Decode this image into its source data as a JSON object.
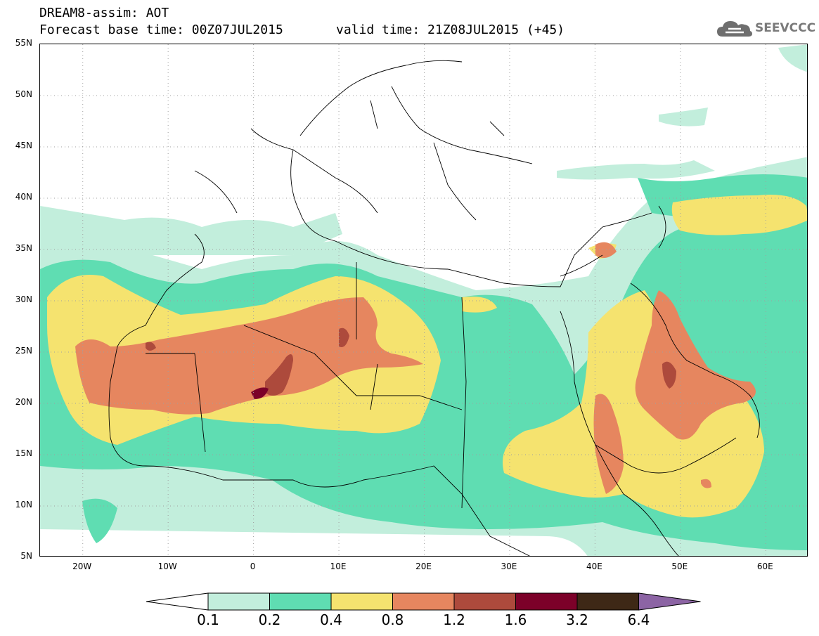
{
  "header": {
    "title": "DREAM8-assim: AOT",
    "base_time": "Forecast base time: 00Z07JUL2015",
    "valid_time": "valid time: 21Z08JUL2015 (+45)"
  },
  "logo": {
    "text": "SEEVCCC",
    "icon": "cloud-icon"
  },
  "map": {
    "lat_labels": [
      "55N",
      "50N",
      "45N",
      "40N",
      "35N",
      "30N",
      "25N",
      "20N",
      "15N",
      "10N",
      "5N"
    ],
    "lon_labels": [
      "20W",
      "10W",
      "0",
      "10E",
      "20E",
      "30E",
      "40E",
      "50E",
      "60E"
    ],
    "lon_range": [
      -25,
      65
    ],
    "lat_range": [
      5,
      55
    ]
  },
  "colorbar": {
    "labels": [
      "0.1",
      "0.2",
      "0.4",
      "0.8",
      "1.2",
      "1.6",
      "3.2",
      "6.4"
    ],
    "colors": [
      "#ffffff",
      "#c2eedc",
      "#5fddb2",
      "#f5e36f",
      "#e6865f",
      "#ad4a3c",
      "#7c0129",
      "#3e2816",
      "#8c64a4"
    ]
  }
}
